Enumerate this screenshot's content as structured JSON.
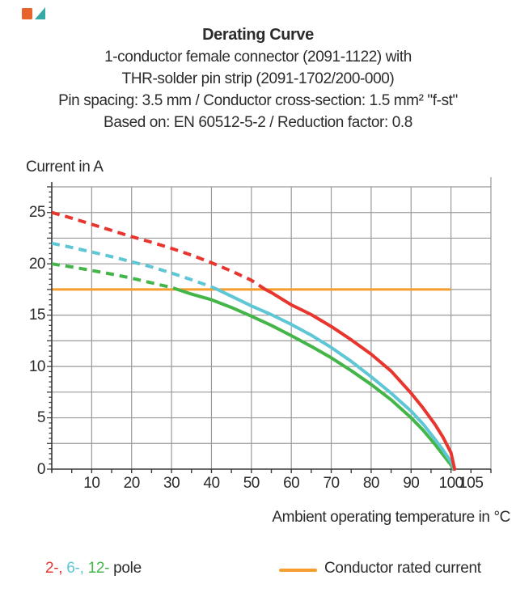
{
  "header": {
    "title": "Derating Curve",
    "subtitle_lines": [
      "1-conductor female connector (2091-1122) with",
      "THR-solder pin strip (2091-1702/200-000)",
      "Pin spacing: 3.5 mm / Conductor cross-section: 1.5 mm² \"f-st\"",
      "Based on: EN 60512-5-2 / Reduction factor: 0.8"
    ]
  },
  "icon": {
    "name": "image-placeholder-icon",
    "square_color": "#e8622c",
    "triangle_color": "#35a9a5"
  },
  "legend": {
    "pole_parts": [
      {
        "text": "2-,",
        "color": "#e8352e"
      },
      {
        "text": "6-,",
        "color": "#5ec6d4"
      },
      {
        "text": "12-",
        "color": "#44b549"
      }
    ],
    "pole_suffix": "pole",
    "rated_label": "Conductor rated current"
  },
  "chart_data": {
    "type": "line",
    "title": "Derating Curve",
    "ylabel": "Current in A",
    "xlabel": "Ambient operating temperature in °C",
    "xlim": [
      0,
      110
    ],
    "ylim": [
      0,
      27.5
    ],
    "x_grid_step": 10,
    "y_grid_step": 2.5,
    "x_minor_tick_step": 5,
    "y_minor_tick_step": 0.5,
    "x_tick_labels": [
      10,
      20,
      30,
      40,
      50,
      60,
      70,
      80,
      90,
      100,
      105
    ],
    "y_tick_labels": [
      0,
      5,
      10,
      15,
      20,
      25
    ],
    "grid_color": "#9a9a9a",
    "axis_color": "#3a3a3a",
    "rated_current_line": {
      "value": 17.5,
      "x_start": 0,
      "x_end": 100,
      "color": "#f59e2e",
      "label": "Conductor rated current"
    },
    "series": [
      {
        "name": "12-pole",
        "color": "#44b549",
        "dashed_until_x": 31.5,
        "points": [
          [
            0,
            20
          ],
          [
            5,
            19.7
          ],
          [
            10,
            19.35
          ],
          [
            15,
            19.0
          ],
          [
            20,
            18.6
          ],
          [
            25,
            18.15
          ],
          [
            30,
            17.7
          ],
          [
            31.5,
            17.5
          ],
          [
            35,
            17.05
          ],
          [
            40,
            16.5
          ],
          [
            45,
            15.75
          ],
          [
            50,
            14.9
          ],
          [
            55,
            14.0
          ],
          [
            60,
            13.0
          ],
          [
            65,
            11.95
          ],
          [
            70,
            10.85
          ],
          [
            75,
            9.6
          ],
          [
            80,
            8.25
          ],
          [
            85,
            6.75
          ],
          [
            90,
            5.0
          ],
          [
            93,
            3.8
          ],
          [
            96,
            2.4
          ],
          [
            98,
            1.4
          ],
          [
            100,
            0.4
          ],
          [
            100.6,
            0
          ]
        ]
      },
      {
        "name": "6-pole",
        "color": "#5ec6d4",
        "dashed_until_x": 41.5,
        "points": [
          [
            0,
            22
          ],
          [
            5,
            21.6
          ],
          [
            10,
            21.15
          ],
          [
            15,
            20.7
          ],
          [
            20,
            20.2
          ],
          [
            25,
            19.7
          ],
          [
            30,
            19.1
          ],
          [
            35,
            18.45
          ],
          [
            40,
            17.75
          ],
          [
            41.5,
            17.5
          ],
          [
            45,
            16.85
          ],
          [
            50,
            15.9
          ],
          [
            55,
            15.05
          ],
          [
            60,
            14.1
          ],
          [
            65,
            13.05
          ],
          [
            70,
            11.85
          ],
          [
            75,
            10.5
          ],
          [
            80,
            9.0
          ],
          [
            85,
            7.4
          ],
          [
            90,
            5.65
          ],
          [
            93,
            4.4
          ],
          [
            96,
            2.9
          ],
          [
            98,
            1.85
          ],
          [
            100,
            0.7
          ],
          [
            100.8,
            0
          ]
        ]
      },
      {
        "name": "2-pole",
        "color": "#e8352e",
        "dashed_until_x": 53.5,
        "points": [
          [
            0,
            25
          ],
          [
            5,
            24.45
          ],
          [
            10,
            23.85
          ],
          [
            15,
            23.25
          ],
          [
            20,
            22.65
          ],
          [
            25,
            22.1
          ],
          [
            30,
            21.5
          ],
          [
            35,
            20.85
          ],
          [
            40,
            20.1
          ],
          [
            45,
            19.3
          ],
          [
            50,
            18.4
          ],
          [
            53.5,
            17.5
          ],
          [
            55,
            17.2
          ],
          [
            60,
            16.0
          ],
          [
            65,
            15.05
          ],
          [
            70,
            13.9
          ],
          [
            75,
            12.6
          ],
          [
            80,
            11.2
          ],
          [
            85,
            9.55
          ],
          [
            90,
            7.4
          ],
          [
            93,
            5.95
          ],
          [
            96,
            4.35
          ],
          [
            98,
            3.1
          ],
          [
            100,
            1.6
          ],
          [
            100.9,
            0
          ]
        ]
      }
    ]
  }
}
